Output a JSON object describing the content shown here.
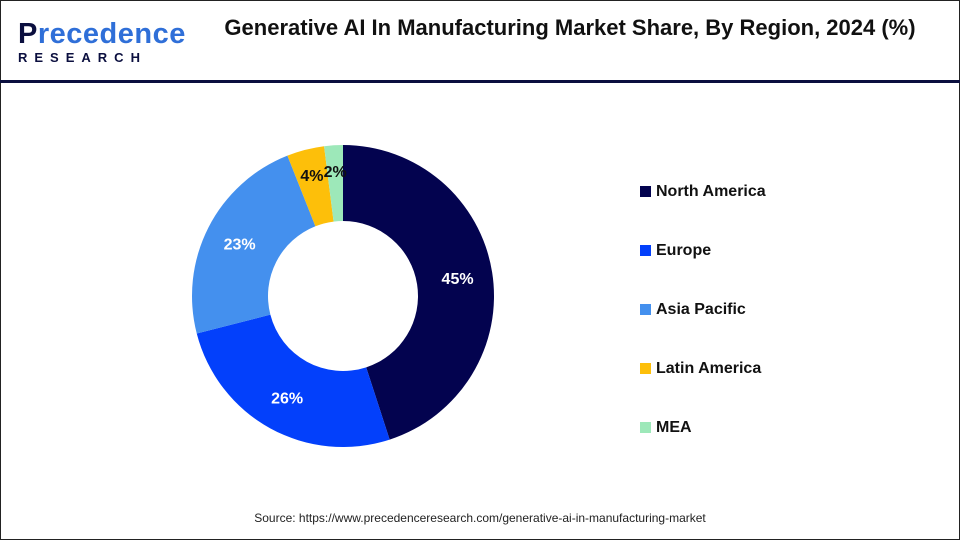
{
  "brand": {
    "logo_top": "Precedence",
    "logo_bottom": "RESEARCH"
  },
  "title": "Generative AI In Manufacturing Market Share, By Region, 2024 (%)",
  "source": "Source: https://www.precedenceresearch.com/generative-ai-in-manufacturing-market",
  "chart_data": {
    "type": "pie",
    "donut": true,
    "title": "Generative AI In Manufacturing Market Share, By Region, 2024 (%)",
    "categories": [
      "North America",
      "Europe",
      "Asia Pacific",
      "Latin America",
      "MEA"
    ],
    "values": [
      45,
      26,
      23,
      4,
      2
    ],
    "labels": [
      "45%",
      "26%",
      "23%",
      "4%",
      "2%"
    ],
    "colors": [
      "#03034f",
      "#0340fb",
      "#4490ee",
      "#fdbf0a",
      "#9de8b9"
    ],
    "label_colors": [
      "#ffffff",
      "#ffffff",
      "#ffffff",
      "#111111",
      "#111111"
    ],
    "legend_position": "right"
  }
}
